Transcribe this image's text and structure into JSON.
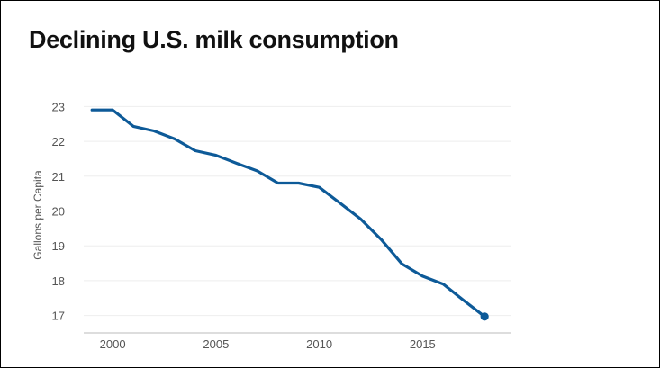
{
  "chart_data": {
    "type": "line",
    "title": "Declining U.S. milk consumption",
    "xlabel": "",
    "ylabel": "Gallons per Capita",
    "x": [
      1999,
      2000,
      2001,
      2002,
      2003,
      2004,
      2005,
      2006,
      2007,
      2008,
      2009,
      2010,
      2011,
      2012,
      2013,
      2014,
      2015,
      2016,
      2017,
      2018
    ],
    "series": [
      {
        "values": [
          22.9,
          22.9,
          22.43,
          22.3,
          22.07,
          21.73,
          21.6,
          21.37,
          21.15,
          20.8,
          20.8,
          20.68,
          20.23,
          19.77,
          19.18,
          18.48,
          18.13,
          17.9,
          17.43,
          16.97
        ]
      }
    ],
    "xticks": [
      "2000",
      "2005",
      "2010",
      "2015"
    ],
    "yticks": [
      "23",
      "22",
      "21",
      "20",
      "19",
      "18",
      "17"
    ],
    "xlim": [
      1998.6,
      2019.3
    ],
    "ylim": [
      16.5,
      23.5
    ],
    "grid": true,
    "line_color": "#0d5a98",
    "grid_color": "#eeeeee",
    "axis_color": "#bbbbbb"
  }
}
